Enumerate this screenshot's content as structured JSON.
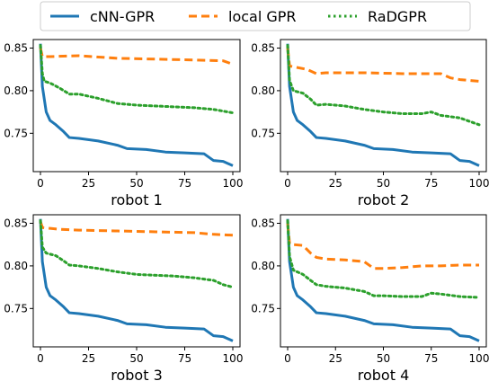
{
  "legend": {
    "items": [
      {
        "label": "cNN-GPR",
        "style": "solid",
        "color": "#1f77b4"
      },
      {
        "label": "local GPR",
        "style": "dashed",
        "color": "#ff7f0e"
      },
      {
        "label": "RaDGPR",
        "style": "dotted",
        "color": "#2ca02c"
      }
    ],
    "placement": "top-center"
  },
  "chart_data": [
    {
      "type": "line",
      "title": "robot 1",
      "xlim": [
        0,
        100
      ],
      "ylim": [
        0.705,
        0.86
      ],
      "xticks": [
        0,
        25,
        50,
        75,
        100
      ],
      "xtick_labels": [
        "0",
        "25",
        "50",
        "75",
        "100"
      ],
      "yticks": [
        0.75,
        0.8,
        0.85
      ],
      "ytick_labels": [
        "0.75",
        "0.80",
        "0.85"
      ],
      "grid": false,
      "series": [
        {
          "name": "cNN-GPR",
          "x": [
            0,
            1,
            3,
            5,
            8,
            12,
            15,
            20,
            30,
            40,
            45,
            55,
            65,
            75,
            85,
            90,
            95,
            100
          ],
          "y": [
            0.855,
            0.805,
            0.775,
            0.765,
            0.76,
            0.752,
            0.745,
            0.744,
            0.741,
            0.736,
            0.732,
            0.731,
            0.728,
            0.727,
            0.726,
            0.718,
            0.717,
            0.712
          ]
        },
        {
          "name": "local GPR",
          "x": [
            0,
            1,
            5,
            20,
            40,
            60,
            80,
            95,
            100
          ],
          "y": [
            0.85,
            0.84,
            0.84,
            0.841,
            0.838,
            0.837,
            0.836,
            0.835,
            0.831
          ]
        },
        {
          "name": "RaDGPR",
          "x": [
            0,
            1,
            2,
            5,
            10,
            15,
            20,
            30,
            40,
            50,
            60,
            70,
            80,
            90,
            95,
            100
          ],
          "y": [
            0.853,
            0.82,
            0.811,
            0.809,
            0.803,
            0.796,
            0.796,
            0.791,
            0.785,
            0.783,
            0.782,
            0.781,
            0.78,
            0.778,
            0.776,
            0.774
          ]
        }
      ]
    },
    {
      "type": "line",
      "title": "robot 2",
      "xlim": [
        0,
        100
      ],
      "ylim": [
        0.705,
        0.86
      ],
      "xticks": [
        0,
        25,
        50,
        75,
        100
      ],
      "xtick_labels": [
        "0",
        "25",
        "50",
        "75",
        "100"
      ],
      "yticks": [
        0.75,
        0.8,
        0.85
      ],
      "ytick_labels": [
        "0.75",
        "0.80",
        "0.85"
      ],
      "grid": false,
      "series": [
        {
          "name": "cNN-GPR",
          "x": [
            0,
            1,
            3,
            5,
            8,
            12,
            15,
            20,
            30,
            40,
            45,
            55,
            65,
            75,
            85,
            90,
            95,
            100
          ],
          "y": [
            0.855,
            0.805,
            0.775,
            0.765,
            0.76,
            0.752,
            0.745,
            0.744,
            0.741,
            0.736,
            0.732,
            0.731,
            0.728,
            0.727,
            0.726,
            0.718,
            0.717,
            0.712
          ]
        },
        {
          "name": "local GPR",
          "x": [
            0,
            1,
            3,
            10,
            15,
            20,
            40,
            60,
            80,
            85,
            90,
            100
          ],
          "y": [
            0.85,
            0.829,
            0.828,
            0.825,
            0.82,
            0.821,
            0.821,
            0.82,
            0.82,
            0.815,
            0.813,
            0.811
          ]
        },
        {
          "name": "RaDGPR",
          "x": [
            0,
            1,
            3,
            8,
            12,
            15,
            20,
            30,
            40,
            50,
            60,
            70,
            75,
            80,
            90,
            95,
            100
          ],
          "y": [
            0.853,
            0.812,
            0.8,
            0.797,
            0.79,
            0.783,
            0.784,
            0.782,
            0.778,
            0.775,
            0.773,
            0.773,
            0.775,
            0.771,
            0.768,
            0.764,
            0.76
          ]
        }
      ]
    },
    {
      "type": "line",
      "title": "robot 3",
      "xlim": [
        0,
        100
      ],
      "ylim": [
        0.705,
        0.86
      ],
      "xticks": [
        0,
        25,
        50,
        75,
        100
      ],
      "xtick_labels": [
        "0",
        "25",
        "50",
        "75",
        "100"
      ],
      "yticks": [
        0.75,
        0.8,
        0.85
      ],
      "ytick_labels": [
        "0.75",
        "0.80",
        "0.85"
      ],
      "grid": false,
      "series": [
        {
          "name": "cNN-GPR",
          "x": [
            0,
            1,
            3,
            5,
            8,
            12,
            15,
            20,
            30,
            40,
            45,
            55,
            65,
            75,
            85,
            90,
            95,
            100
          ],
          "y": [
            0.855,
            0.805,
            0.775,
            0.765,
            0.76,
            0.752,
            0.745,
            0.744,
            0.741,
            0.736,
            0.732,
            0.731,
            0.728,
            0.727,
            0.726,
            0.718,
            0.717,
            0.712
          ]
        },
        {
          "name": "local GPR",
          "x": [
            0,
            1,
            5,
            10,
            20,
            40,
            60,
            80,
            90,
            100
          ],
          "y": [
            0.852,
            0.845,
            0.844,
            0.843,
            0.842,
            0.841,
            0.84,
            0.839,
            0.837,
            0.836
          ]
        },
        {
          "name": "RaDGPR",
          "x": [
            0,
            1,
            3,
            8,
            12,
            15,
            20,
            30,
            40,
            50,
            60,
            70,
            80,
            90,
            95,
            100
          ],
          "y": [
            0.853,
            0.822,
            0.815,
            0.812,
            0.806,
            0.801,
            0.8,
            0.797,
            0.793,
            0.79,
            0.789,
            0.788,
            0.786,
            0.783,
            0.778,
            0.775
          ]
        }
      ]
    },
    {
      "type": "line",
      "title": "robot 4",
      "xlim": [
        0,
        100
      ],
      "ylim": [
        0.705,
        0.86
      ],
      "xticks": [
        0,
        25,
        50,
        75,
        100
      ],
      "xtick_labels": [
        "0",
        "25",
        "50",
        "75",
        "100"
      ],
      "yticks": [
        0.75,
        0.8,
        0.85
      ],
      "ytick_labels": [
        "0.75",
        "0.80",
        "0.85"
      ],
      "grid": false,
      "series": [
        {
          "name": "cNN-GPR",
          "x": [
            0,
            1,
            3,
            5,
            8,
            12,
            15,
            20,
            30,
            40,
            45,
            55,
            65,
            75,
            85,
            90,
            95,
            100
          ],
          "y": [
            0.855,
            0.805,
            0.775,
            0.765,
            0.76,
            0.752,
            0.745,
            0.744,
            0.741,
            0.736,
            0.732,
            0.731,
            0.728,
            0.727,
            0.726,
            0.718,
            0.717,
            0.712
          ]
        },
        {
          "name": "local GPR",
          "x": [
            0,
            1,
            3,
            8,
            12,
            15,
            20,
            30,
            40,
            45,
            50,
            60,
            70,
            80,
            90,
            100
          ],
          "y": [
            0.85,
            0.826,
            0.825,
            0.824,
            0.815,
            0.81,
            0.808,
            0.807,
            0.805,
            0.797,
            0.797,
            0.798,
            0.8,
            0.8,
            0.801,
            0.801
          ]
        },
        {
          "name": "RaDGPR",
          "x": [
            0,
            1,
            3,
            8,
            12,
            15,
            20,
            30,
            40,
            45,
            50,
            60,
            70,
            75,
            80,
            90,
            100
          ],
          "y": [
            0.853,
            0.811,
            0.795,
            0.79,
            0.783,
            0.778,
            0.776,
            0.774,
            0.77,
            0.765,
            0.765,
            0.764,
            0.764,
            0.768,
            0.767,
            0.764,
            0.763
          ]
        }
      ]
    }
  ]
}
